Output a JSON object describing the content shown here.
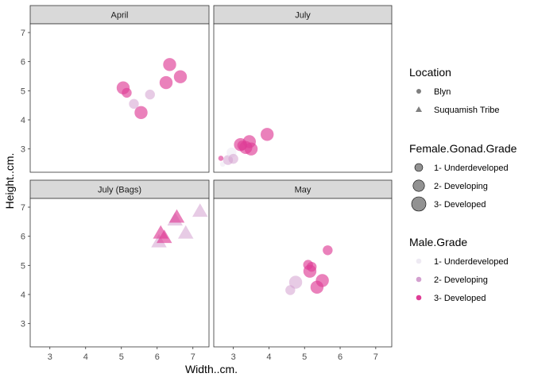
{
  "chart_data": {
    "type": "scatter",
    "xlabel": "Width..cm.",
    "ylabel": "Height..cm.",
    "xlim": [
      2.45,
      7.45
    ],
    "ylim": [
      2.2,
      7.3
    ],
    "x_ticks": [
      3,
      4,
      5,
      6,
      7
    ],
    "y_ticks": [
      3,
      4,
      5,
      6,
      7
    ],
    "grid": false,
    "legend_position": "right",
    "colors": {
      "strip_fill": "#d9d9d9",
      "panel_border": "#333333",
      "male_1": "#eeeaf3",
      "male_2": "#d3a0cf",
      "male_3": "#df3d96",
      "legend_gray": "#7f7f7f"
    },
    "facets": [
      {
        "name": "April",
        "points": [
          {
            "x": 5.05,
            "y": 5.1,
            "female": 2,
            "male": 3,
            "location": "Blyn"
          },
          {
            "x": 5.15,
            "y": 4.93,
            "female": 1,
            "male": 3,
            "location": "Blyn"
          },
          {
            "x": 5.35,
            "y": 4.55,
            "female": 1,
            "male": 2,
            "location": "Blyn"
          },
          {
            "x": 5.55,
            "y": 4.25,
            "female": 2,
            "male": 3,
            "location": "Blyn"
          },
          {
            "x": 5.8,
            "y": 4.87,
            "female": 1,
            "male": 2,
            "location": "Blyn"
          },
          {
            "x": 6.25,
            "y": 5.28,
            "female": 2,
            "male": 3,
            "location": "Blyn"
          },
          {
            "x": 6.35,
            "y": 5.9,
            "female": 2,
            "male": 3,
            "location": "Blyn"
          },
          {
            "x": 6.65,
            "y": 5.48,
            "female": 2,
            "male": 3,
            "location": "Blyn"
          }
        ]
      },
      {
        "name": "July",
        "points": [
          {
            "x": 2.65,
            "y": 2.68,
            "female": 0,
            "male": 3,
            "location": "Blyn"
          },
          {
            "x": 2.7,
            "y": 2.48,
            "female": 0,
            "male": 1,
            "location": "Blyn"
          },
          {
            "x": 2.85,
            "y": 2.62,
            "female": 1,
            "male": 2,
            "location": "Blyn"
          },
          {
            "x": 2.95,
            "y": 2.88,
            "female": 1,
            "male": 1,
            "location": "Blyn"
          },
          {
            "x": 3.0,
            "y": 2.66,
            "female": 1,
            "male": 2,
            "location": "Blyn"
          },
          {
            "x": 3.2,
            "y": 3.15,
            "female": 2,
            "male": 3,
            "location": "Blyn"
          },
          {
            "x": 3.25,
            "y": 3.12,
            "female": 1,
            "male": 3,
            "location": "Blyn"
          },
          {
            "x": 3.35,
            "y": 3.05,
            "female": 2,
            "male": 3,
            "location": "Blyn"
          },
          {
            "x": 3.45,
            "y": 3.25,
            "female": 2,
            "male": 3,
            "location": "Blyn"
          },
          {
            "x": 3.5,
            "y": 3.0,
            "female": 2,
            "male": 3,
            "location": "Blyn"
          },
          {
            "x": 3.95,
            "y": 3.5,
            "female": 2,
            "male": 3,
            "location": "Blyn"
          }
        ]
      },
      {
        "name": "July (Bags)",
        "points": [
          {
            "x": 6.05,
            "y": 5.8,
            "female": 2,
            "male": 2,
            "location": "Suquamish Tribe"
          },
          {
            "x": 6.1,
            "y": 6.1,
            "female": 2,
            "male": 3,
            "location": "Suquamish Tribe"
          },
          {
            "x": 6.2,
            "y": 5.95,
            "female": 2,
            "male": 3,
            "location": "Suquamish Tribe"
          },
          {
            "x": 6.5,
            "y": 6.55,
            "female": 2,
            "male": 2,
            "location": "Suquamish Tribe"
          },
          {
            "x": 6.55,
            "y": 6.65,
            "female": 2,
            "male": 3,
            "location": "Suquamish Tribe"
          },
          {
            "x": 6.8,
            "y": 6.1,
            "female": 2,
            "male": 2,
            "location": "Suquamish Tribe"
          },
          {
            "x": 7.2,
            "y": 6.85,
            "female": 2,
            "male": 2,
            "location": "Suquamish Tribe"
          }
        ]
      },
      {
        "name": "May",
        "points": [
          {
            "x": 4.6,
            "y": 4.15,
            "female": 1,
            "male": 2,
            "location": "Blyn"
          },
          {
            "x": 4.75,
            "y": 4.42,
            "female": 2,
            "male": 2,
            "location": "Blyn"
          },
          {
            "x": 5.1,
            "y": 5.02,
            "female": 1,
            "male": 3,
            "location": "Blyn"
          },
          {
            "x": 5.15,
            "y": 4.8,
            "female": 2,
            "male": 3,
            "location": "Blyn"
          },
          {
            "x": 5.2,
            "y": 4.95,
            "female": 1,
            "male": 3,
            "location": "Blyn"
          },
          {
            "x": 5.35,
            "y": 4.25,
            "female": 2,
            "male": 3,
            "location": "Blyn"
          },
          {
            "x": 5.5,
            "y": 4.48,
            "female": 2,
            "male": 3,
            "location": "Blyn"
          },
          {
            "x": 5.65,
            "y": 5.52,
            "female": 1,
            "male": 3,
            "location": "Blyn"
          }
        ]
      }
    ],
    "legends": [
      {
        "title": "Location",
        "kind": "shape",
        "items": [
          {
            "label": "Blyn",
            "shape": "circle"
          },
          {
            "label": "Suquamish Tribe",
            "shape": "triangle"
          }
        ]
      },
      {
        "title": "Female.Gonad.Grade",
        "kind": "size",
        "items": [
          {
            "label": "1- Underdeveloped",
            "size": 1
          },
          {
            "label": "2- Developing",
            "size": 2
          },
          {
            "label": "3- Developed",
            "size": 3
          }
        ]
      },
      {
        "title": "Male.Grade",
        "kind": "color",
        "items": [
          {
            "label": "1- Underdeveloped",
            "grade": 1
          },
          {
            "label": "2- Developing",
            "grade": 2
          },
          {
            "label": "3- Developed",
            "grade": 3
          }
        ]
      }
    ]
  }
}
